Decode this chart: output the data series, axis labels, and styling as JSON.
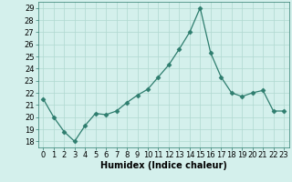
{
  "x": [
    0,
    1,
    2,
    3,
    4,
    5,
    6,
    7,
    8,
    9,
    10,
    11,
    12,
    13,
    14,
    15,
    16,
    17,
    18,
    19,
    20,
    21,
    22,
    23
  ],
  "y": [
    21.5,
    20.0,
    18.8,
    18.0,
    19.3,
    20.3,
    20.2,
    20.5,
    21.2,
    21.8,
    22.3,
    23.3,
    24.3,
    25.6,
    27.0,
    29.0,
    25.3,
    23.3,
    22.0,
    21.7,
    22.0,
    22.2,
    20.5,
    20.5
  ],
  "xlabel": "Humidex (Indice chaleur)",
  "ylim": [
    17.5,
    29.5
  ],
  "yticks": [
    18,
    19,
    20,
    21,
    22,
    23,
    24,
    25,
    26,
    27,
    28,
    29
  ],
  "xlim": [
    -0.5,
    23.5
  ],
  "xticks": [
    0,
    1,
    2,
    3,
    4,
    5,
    6,
    7,
    8,
    9,
    10,
    11,
    12,
    13,
    14,
    15,
    16,
    17,
    18,
    19,
    20,
    21,
    22,
    23
  ],
  "line_color": "#2e7d6e",
  "marker": "D",
  "marker_size": 2.5,
  "bg_color": "#d4f0ec",
  "grid_color": "#b0d8d0",
  "label_fontsize": 7,
  "tick_fontsize": 6
}
